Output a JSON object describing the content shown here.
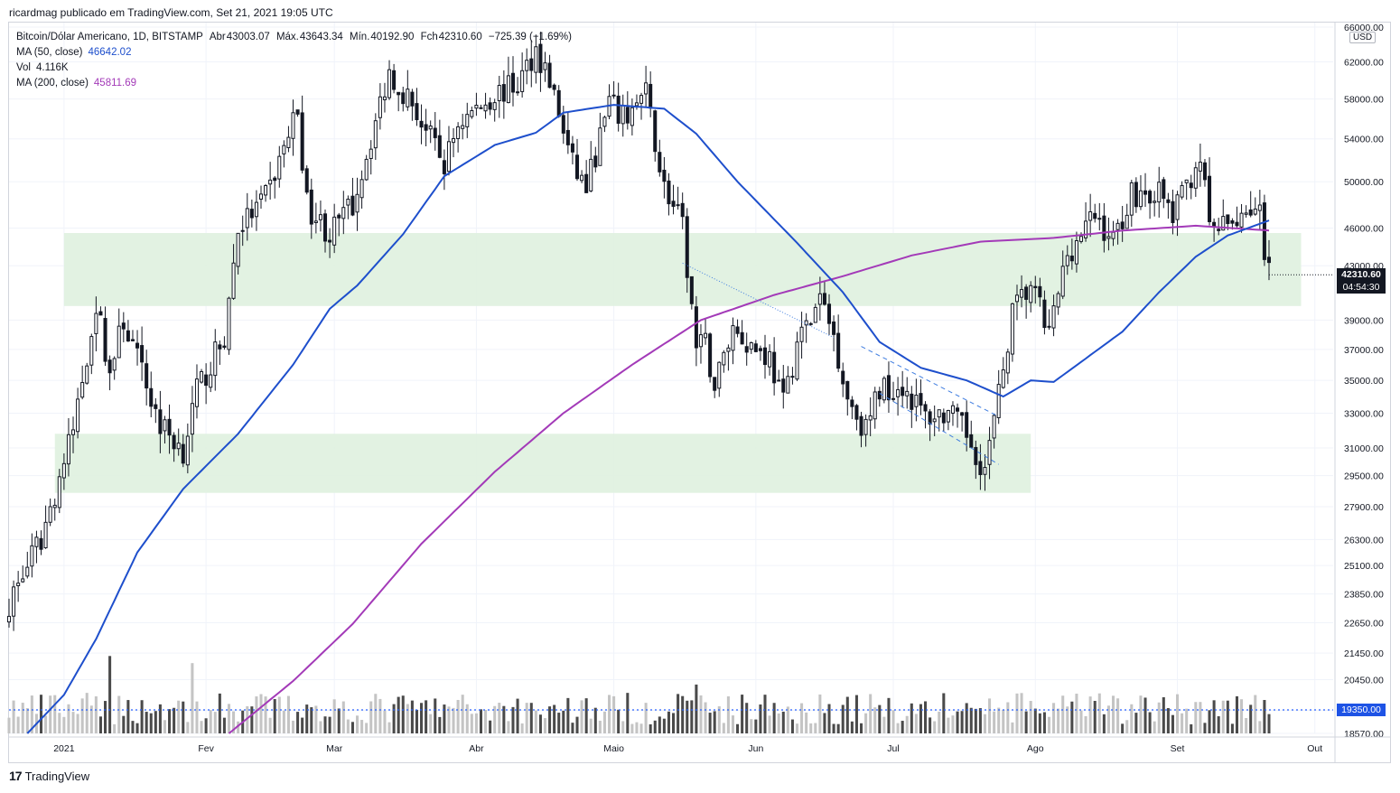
{
  "caption": "ricardmag publicado em TradingView.com, Set 21, 2021 19:05 UTC",
  "legend": {
    "symbol": "Bitcoin/Dólar Americano, 1D, BITSTAMP",
    "open_label": "Abr",
    "open": "43003.07",
    "high_label": "Máx.",
    "high": "43643.34",
    "low_label": "Mín.",
    "low": "40192.90",
    "close_label": "Fch",
    "close": "42310.60",
    "change": "−725.39 (−1.69%)",
    "ma50_label": "MA (50, close)",
    "ma50_value": "46642.02",
    "vol_label": "Vol",
    "vol_value": "4.116K",
    "ma200_label": "MA (200, close)",
    "ma200_value": "45811.69"
  },
  "currency": "USD",
  "last_price": "42310.60",
  "countdown": "04:54:30",
  "volume_line_label": "19350.00",
  "brand": "TradingView",
  "colors": {
    "ma50": "#1e4fcc",
    "ma200": "#a33ab8",
    "zone": "#dff1df",
    "grid": "#f0f3fa",
    "candle_up": "#ffffff",
    "candle_down": "#131722",
    "vol_up": "#c4c4c4",
    "vol_down": "#4a4a4a",
    "trend_dash": "#3f7de0",
    "volume_line": "#2962ff"
  },
  "chart_data": {
    "type": "candlestick",
    "y_scale": "log",
    "ylim": [
      18570,
      66000
    ],
    "y_ticks": [
      66000,
      62000,
      58000,
      54000,
      50000,
      46000,
      43000,
      39000,
      37000,
      35000,
      33000,
      31000,
      29500,
      27900,
      26300,
      25100,
      23850,
      22650,
      21450,
      20450,
      19350,
      18570
    ],
    "y_tick_labels": [
      "66000.00",
      "62000.00",
      "58000.00",
      "54000.00",
      "50000.00",
      "46000.00",
      "43000.00",
      "39000.00",
      "37000.00",
      "35000.00",
      "33000.00",
      "31000.00",
      "29500.00",
      "27900.00",
      "26300.00",
      "25100.00",
      "23850.00",
      "22650.00",
      "21450.00",
      "20450.00",
      "19350.00",
      "18570.00"
    ],
    "x_range": [
      "2020-12-20",
      "2021-10-05"
    ],
    "x_ticks": [
      {
        "date": "2021-01-01",
        "label": "2021"
      },
      {
        "date": "2021-02-01",
        "label": "Fev"
      },
      {
        "date": "2021-03-01",
        "label": "Mar"
      },
      {
        "date": "2021-04-01",
        "label": "Abr"
      },
      {
        "date": "2021-05-01",
        "label": "Maio"
      },
      {
        "date": "2021-06-01",
        "label": "Jun"
      },
      {
        "date": "2021-07-01",
        "label": "Jul"
      },
      {
        "date": "2021-08-01",
        "label": "Ago"
      },
      {
        "date": "2021-09-01",
        "label": "Set"
      },
      {
        "date": "2021-10-01",
        "label": "Out"
      }
    ],
    "price_anchors": [
      [
        "2020-12-20",
        23500
      ],
      [
        "2020-12-27",
        26300
      ],
      [
        "2021-01-03",
        32000
      ],
      [
        "2021-01-08",
        40200
      ],
      [
        "2021-01-11",
        35500
      ],
      [
        "2021-01-14",
        39000
      ],
      [
        "2021-01-22",
        32300
      ],
      [
        "2021-01-27",
        30900
      ],
      [
        "2021-01-30",
        34300
      ],
      [
        "2021-02-05",
        37800
      ],
      [
        "2021-02-08",
        46000
      ],
      [
        "2021-02-14",
        48500
      ],
      [
        "2021-02-21",
        57000
      ],
      [
        "2021-02-23",
        48000
      ],
      [
        "2021-02-28",
        45500
      ],
      [
        "2021-03-05",
        48000
      ],
      [
        "2021-03-13",
        61000
      ],
      [
        "2021-03-18",
        57500
      ],
      [
        "2021-03-25",
        51500
      ],
      [
        "2021-03-28",
        55500
      ],
      [
        "2021-04-05",
        58500
      ],
      [
        "2021-04-10",
        59500
      ],
      [
        "2021-04-14",
        63500
      ],
      [
        "2021-04-17",
        60000
      ],
      [
        "2021-04-22",
        51500
      ],
      [
        "2021-04-25",
        49500
      ],
      [
        "2021-04-30",
        57500
      ],
      [
        "2021-05-03",
        56000
      ],
      [
        "2021-05-08",
        58500
      ],
      [
        "2021-05-12",
        49500
      ],
      [
        "2021-05-16",
        46000
      ],
      [
        "2021-05-19",
        37000
      ],
      [
        "2021-05-21",
        37300
      ],
      [
        "2021-05-23",
        34700
      ],
      [
        "2021-05-27",
        38500
      ],
      [
        "2021-05-31",
        37300
      ],
      [
        "2021-06-04",
        36500
      ],
      [
        "2021-06-07",
        33500
      ],
      [
        "2021-06-10",
        37500
      ],
      [
        "2021-06-13",
        39000
      ],
      [
        "2021-06-15",
        40500
      ],
      [
        "2021-06-18",
        38000
      ],
      [
        "2021-06-21",
        34000
      ],
      [
        "2021-06-25",
        32000
      ],
      [
        "2021-06-28",
        34500
      ],
      [
        "2021-07-03",
        34700
      ],
      [
        "2021-07-08",
        32800
      ],
      [
        "2021-07-13",
        33000
      ],
      [
        "2021-07-17",
        31800
      ],
      [
        "2021-07-21",
        29800
      ],
      [
        "2021-07-24",
        34000
      ],
      [
        "2021-07-27",
        39500
      ],
      [
        "2021-07-31",
        41500
      ],
      [
        "2021-08-04",
        38000
      ],
      [
        "2021-08-08",
        44000
      ],
      [
        "2021-08-14",
        47000
      ],
      [
        "2021-08-18",
        45000
      ],
      [
        "2021-08-22",
        49000
      ],
      [
        "2021-08-28",
        49000
      ],
      [
        "2021-08-31",
        47000
      ],
      [
        "2021-09-06",
        52500
      ],
      [
        "2021-09-08",
        46000
      ],
      [
        "2021-09-12",
        46000
      ],
      [
        "2021-09-16",
        47800
      ],
      [
        "2021-09-19",
        47300
      ],
      [
        "2021-09-20",
        43000
      ],
      [
        "2021-09-21",
        42310
      ]
    ],
    "ma50_anchors": [
      [
        "2020-12-24",
        18570
      ],
      [
        "2021-01-01",
        19900
      ],
      [
        "2021-01-08",
        22000
      ],
      [
        "2021-01-17",
        25700
      ],
      [
        "2021-01-27",
        28800
      ],
      [
        "2021-02-08",
        31800
      ],
      [
        "2021-02-20",
        36000
      ],
      [
        "2021-02-28",
        39800
      ],
      [
        "2021-03-06",
        41500
      ],
      [
        "2021-03-16",
        45500
      ],
      [
        "2021-03-25",
        50500
      ],
      [
        "2021-04-05",
        53400
      ],
      [
        "2021-04-14",
        54600
      ],
      [
        "2021-04-20",
        56600
      ],
      [
        "2021-05-01",
        57400
      ],
      [
        "2021-05-12",
        57000
      ],
      [
        "2021-05-19",
        54500
      ],
      [
        "2021-05-28",
        50000
      ],
      [
        "2021-06-10",
        44800
      ],
      [
        "2021-06-20",
        41000
      ],
      [
        "2021-06-28",
        37500
      ],
      [
        "2021-07-07",
        35800
      ],
      [
        "2021-07-17",
        35000
      ],
      [
        "2021-07-25",
        34000
      ],
      [
        "2021-07-31",
        35000
      ],
      [
        "2021-08-05",
        34900
      ],
      [
        "2021-08-12",
        36400
      ],
      [
        "2021-08-20",
        38200
      ],
      [
        "2021-08-28",
        41000
      ],
      [
        "2021-09-05",
        43700
      ],
      [
        "2021-09-12",
        45400
      ],
      [
        "2021-09-21",
        46642
      ]
    ],
    "ma200_anchors": [
      [
        "2021-02-06",
        18570
      ],
      [
        "2021-02-20",
        20400
      ],
      [
        "2021-03-05",
        22600
      ],
      [
        "2021-03-20",
        26100
      ],
      [
        "2021-04-05",
        29700
      ],
      [
        "2021-04-20",
        33000
      ],
      [
        "2021-05-05",
        36000
      ],
      [
        "2021-05-20",
        39000
      ],
      [
        "2021-06-05",
        40800
      ],
      [
        "2021-06-20",
        42200
      ],
      [
        "2021-07-05",
        43800
      ],
      [
        "2021-07-20",
        44900
      ],
      [
        "2021-08-05",
        45200
      ],
      [
        "2021-08-20",
        45800
      ],
      [
        "2021-09-05",
        46200
      ],
      [
        "2021-09-21",
        45812
      ]
    ],
    "zones": [
      {
        "x1": "2021-01-01",
        "x2": "2021-09-28",
        "y1": 40000,
        "y2": 45600
      },
      {
        "x1": "2020-12-30",
        "x2": "2021-07-31",
        "y1": 28600,
        "y2": 31800
      }
    ],
    "trendlines": [
      {
        "x1": "2021-05-16",
        "y1": 43200,
        "x2": "2021-06-18",
        "y2": 37800,
        "style": "dotted"
      },
      {
        "x1": "2021-06-24",
        "y1": 37200,
        "x2": "2021-07-24",
        "y2": 32800,
        "style": "dashed"
      },
      {
        "x1": "2021-06-28",
        "y1": 34200,
        "x2": "2021-07-24",
        "y2": 30100,
        "style": "dashed"
      }
    ],
    "volume_line": 19350,
    "volume_spikes": [
      [
        "2021-01-11",
        4.7
      ],
      [
        "2021-05-19",
        5.2
      ],
      [
        "2021-02-24",
        2.0
      ],
      [
        "2021-01-29",
        2.3
      ]
    ]
  }
}
